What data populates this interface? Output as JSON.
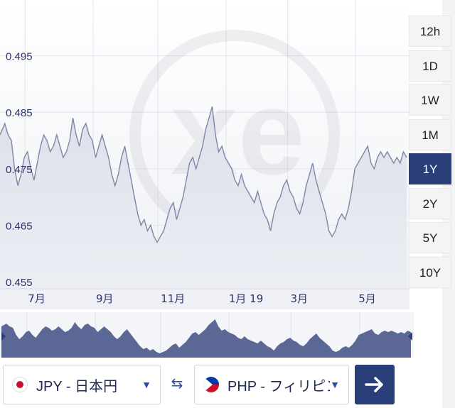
{
  "chart_data": {
    "type": "area",
    "title": "",
    "xlabel": "",
    "ylabel": "",
    "ylim": [
      0.455,
      0.5
    ],
    "y_ticks": [
      "0.495",
      "0.485",
      "0.475",
      "0.465",
      "0.455"
    ],
    "x_ticks": [
      {
        "label": "7月",
        "x": 1.2
      },
      {
        "label": "9月",
        "x": 3.3
      },
      {
        "label": "11月",
        "x": 5.3
      },
      {
        "label": "1月 19",
        "x": 7.4
      },
      {
        "label": "3月",
        "x": 9.3
      },
      {
        "label": "5月",
        "x": 11.4
      }
    ],
    "x_range": [
      0.25,
      12.8
    ],
    "grid": true,
    "series": [
      {
        "x": [
          0.25,
          0.4,
          0.5,
          0.6,
          0.7,
          0.8,
          0.9,
          1.0,
          1.1,
          1.2,
          1.3,
          1.4,
          1.5,
          1.6,
          1.7,
          1.8,
          1.9,
          2.0,
          2.1,
          2.2,
          2.3,
          2.4,
          2.5,
          2.6,
          2.7,
          2.8,
          2.9,
          3.0,
          3.1,
          3.2,
          3.3,
          3.4,
          3.5,
          3.6,
          3.7,
          3.8,
          3.9,
          4.0,
          4.1,
          4.2,
          4.3,
          4.4,
          4.5,
          4.6,
          4.7,
          4.8,
          4.9,
          5.0,
          5.1,
          5.2,
          5.3,
          5.4,
          5.5,
          5.6,
          5.7,
          5.8,
          5.9,
          6.0,
          6.1,
          6.2,
          6.3,
          6.4,
          6.5,
          6.6,
          6.7,
          6.8,
          6.9,
          7.0,
          7.1,
          7.2,
          7.3,
          7.4,
          7.5,
          7.6,
          7.7,
          7.8,
          7.9,
          8.0,
          8.1,
          8.2,
          8.3,
          8.4,
          8.5,
          8.6,
          8.7,
          8.8,
          8.9,
          9.0,
          9.1,
          9.2,
          9.3,
          9.4,
          9.5,
          9.6,
          9.7,
          9.8,
          9.9,
          10.0,
          10.1,
          10.2,
          10.3,
          10.4,
          10.5,
          10.6,
          10.7,
          10.8,
          10.9,
          11.0,
          11.1,
          11.2,
          11.3,
          11.4,
          11.5,
          11.6,
          11.7,
          11.8,
          11.9,
          12.0,
          12.1,
          12.2,
          12.3,
          12.4,
          12.5,
          12.6,
          12.7,
          12.8
        ],
        "values": [
          0.481,
          0.483,
          0.481,
          0.48,
          0.475,
          0.472,
          0.474,
          0.477,
          0.478,
          0.475,
          0.473,
          0.476,
          0.479,
          0.481,
          0.48,
          0.478,
          0.479,
          0.481,
          0.479,
          0.477,
          0.478,
          0.48,
          0.484,
          0.481,
          0.479,
          0.482,
          0.483,
          0.481,
          0.48,
          0.477,
          0.479,
          0.481,
          0.479,
          0.477,
          0.474,
          0.472,
          0.474,
          0.477,
          0.479,
          0.476,
          0.473,
          0.47,
          0.467,
          0.465,
          0.466,
          0.464,
          0.465,
          0.463,
          0.462,
          0.463,
          0.464,
          0.466,
          0.468,
          0.469,
          0.466,
          0.468,
          0.47,
          0.473,
          0.476,
          0.477,
          0.475,
          0.477,
          0.479,
          0.482,
          0.484,
          0.486,
          0.481,
          0.478,
          0.479,
          0.477,
          0.476,
          0.475,
          0.473,
          0.472,
          0.474,
          0.472,
          0.471,
          0.47,
          0.469,
          0.471,
          0.469,
          0.467,
          0.466,
          0.464,
          0.467,
          0.469,
          0.47,
          0.472,
          0.473,
          0.471,
          0.47,
          0.468,
          0.467,
          0.469,
          0.472,
          0.474,
          0.476,
          0.473,
          0.471,
          0.469,
          0.467,
          0.464,
          0.463,
          0.464,
          0.466,
          0.467,
          0.466,
          0.468,
          0.471,
          0.475,
          0.476,
          0.477,
          0.478,
          0.479,
          0.476,
          0.475,
          0.477,
          0.478,
          0.477,
          0.478,
          0.477,
          0.476,
          0.477,
          0.476,
          0.478,
          0.477
        ]
      }
    ]
  },
  "periods": [
    "12h",
    "1D",
    "1W",
    "1M",
    "1Y",
    "2Y",
    "5Y",
    "10Y"
  ],
  "active_period": "1Y",
  "from_currency": {
    "label": "JPY - 日本円",
    "flag": "jp-flag-icon"
  },
  "to_currency": {
    "label": "PHP - フィリピン",
    "flag": "ph-flag-icon"
  },
  "colors": {
    "line": "#7d87a6",
    "fill": "#e4e6ee",
    "nav_fill": "#5b6794",
    "accent": "#2a3f7a"
  }
}
